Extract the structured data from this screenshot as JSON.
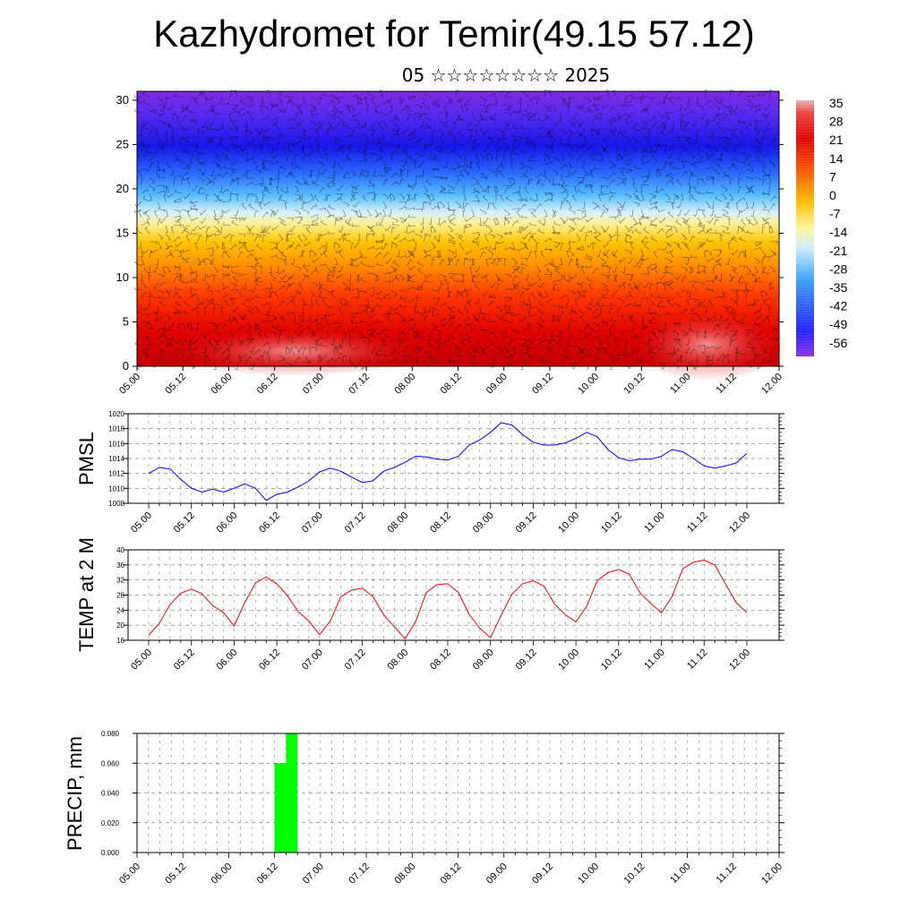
{
  "title": "Kazhydromet for Temir(49.15 57.12)",
  "subtitle": "05 ☆☆☆☆☆☆☆☆ 2025",
  "chart_data": [
    {
      "type": "heatmap",
      "description_ref": "cross-section",
      "x_ticks": [
        "05.00",
        "05.12",
        "06.00",
        "06.12",
        "07.00",
        "07.12",
        "08.00",
        "08.12",
        "09.00",
        "09.12",
        "10.00",
        "10.12",
        "11.00",
        "11.12",
        "12.00"
      ],
      "y_ticks": [
        0,
        5,
        10,
        15,
        20,
        25,
        30
      ],
      "ylim": [
        0,
        31
      ],
      "colorbar_labels": [
        "35",
        "28",
        "21",
        "14",
        "7",
        "0",
        "-7",
        "-14",
        "-21",
        "-28",
        "-35",
        "-42",
        "-49",
        "-56"
      ],
      "colorbar_range": [
        -60,
        38
      ],
      "colors": [
        "#8a2be2",
        "#1a1aff",
        "#4a90ff",
        "#bfe6ff",
        "#fff099",
        "#ffc000",
        "#ff6a00",
        "#e00000",
        "#f5a0a0"
      ]
    },
    {
      "type": "line",
      "ylabel": "PMSL",
      "x_ticks": [
        "05.00",
        "05.12",
        "06.00",
        "06.12",
        "07.00",
        "07.12",
        "08.00",
        "08.12",
        "09.00",
        "09.12",
        "10.00",
        "10.12",
        "11.00",
        "11.12",
        "12.00"
      ],
      "y_ticks": [
        1008,
        1010,
        1012,
        1014,
        1016,
        1018,
        1020
      ],
      "ylim": [
        1008,
        1020
      ],
      "color": "#0000ff",
      "x": [
        0,
        3,
        6,
        9,
        12,
        15,
        18,
        21,
        24,
        27,
        30,
        33,
        36,
        39,
        42,
        45,
        48,
        51,
        54,
        57,
        60,
        63,
        66,
        69,
        72,
        75,
        78,
        81,
        84,
        87,
        90,
        93,
        96,
        99,
        102,
        105,
        108,
        111,
        114,
        117,
        120,
        123,
        126,
        129,
        132,
        135,
        138,
        141,
        144,
        147,
        150,
        153,
        156,
        159,
        162,
        165,
        168
      ],
      "values": [
        1012.0,
        1012.8,
        1012.6,
        1011.2,
        1010.0,
        1009.5,
        1009.9,
        1009.5,
        1010.0,
        1010.6,
        1010.0,
        1008.4,
        1009.2,
        1009.5,
        1010.2,
        1011.0,
        1012.2,
        1012.7,
        1012.3,
        1011.5,
        1010.8,
        1011.0,
        1012.3,
        1012.8,
        1013.5,
        1014.3,
        1014.2,
        1013.9,
        1013.8,
        1014.3,
        1015.8,
        1016.5,
        1017.5,
        1018.8,
        1018.5,
        1017.2,
        1016.2,
        1015.8,
        1015.8,
        1016.1,
        1016.7,
        1017.5,
        1016.9,
        1015.2,
        1014.1,
        1013.7,
        1013.9,
        1013.9,
        1014.3,
        1015.2,
        1014.9,
        1014.0,
        1013.0,
        1012.7,
        1013.0,
        1013.4,
        1014.7
      ]
    },
    {
      "type": "line",
      "ylabel": "TEMP at 2 M",
      "x_ticks": [
        "05.00",
        "05.12",
        "06.00",
        "06.12",
        "07.00",
        "07.12",
        "08.00",
        "08.12",
        "09.00",
        "09.12",
        "10.00",
        "10.12",
        "11.00",
        "11.12",
        "12.00"
      ],
      "y_ticks": [
        16,
        20,
        24,
        28,
        32,
        36,
        40
      ],
      "ylim": [
        16,
        40
      ],
      "color": "#ff0000",
      "x": [
        0,
        3,
        6,
        9,
        12,
        15,
        18,
        21,
        24,
        27,
        30,
        33,
        36,
        39,
        42,
        45,
        48,
        51,
        54,
        57,
        60,
        63,
        66,
        69,
        72,
        75,
        78,
        81,
        84,
        87,
        90,
        93,
        96,
        99,
        102,
        105,
        108,
        111,
        114,
        117,
        120,
        123,
        126,
        129,
        132,
        135,
        138,
        141,
        144,
        147,
        150,
        153,
        156,
        159,
        162,
        165,
        168
      ],
      "values": [
        17.3,
        20.5,
        25.5,
        28.5,
        29.6,
        28.3,
        25.2,
        23.4,
        19.8,
        26.0,
        31.2,
        32.8,
        31.0,
        27.8,
        23.6,
        21.1,
        17.5,
        21.1,
        27.6,
        29.3,
        29.8,
        27.6,
        22.8,
        19.6,
        16.4,
        21.0,
        28.7,
        30.8,
        31.0,
        28.7,
        22.9,
        19.2,
        16.7,
        22.6,
        28.2,
        31.0,
        31.8,
        30.4,
        25.6,
        22.8,
        20.9,
        25.0,
        31.8,
        34.0,
        34.8,
        33.5,
        28.6,
        25.8,
        23.3,
        27.6,
        35.0,
        36.7,
        37.3,
        36.0,
        31.0,
        26.0,
        23.3
      ]
    },
    {
      "type": "bar",
      "ylabel": "PRECIP, mm",
      "x_ticks": [
        "05.00",
        "05.12",
        "06.00",
        "06.12",
        "07.00",
        "07.12",
        "08.00",
        "08.12",
        "09.00",
        "09.12",
        "10.00",
        "10.12",
        "11.00",
        "11.12",
        "12.00"
      ],
      "y_ticks": [
        "0.000",
        "0.020",
        "0.040",
        "0.060",
        "0.080"
      ],
      "ylim": [
        0,
        0.08
      ],
      "color": "#00ff00",
      "x": [
        36,
        39
      ],
      "values": [
        0.06,
        0.08
      ]
    }
  ]
}
